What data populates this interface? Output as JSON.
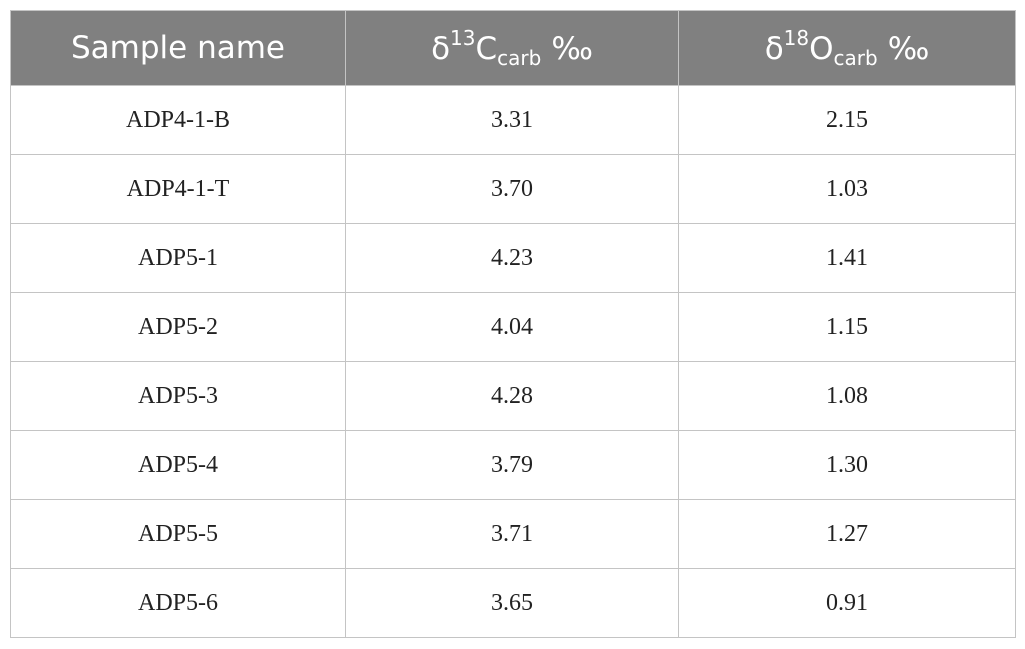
{
  "table": {
    "header": [
      {
        "text": "Sample name"
      },
      {
        "base": "δ",
        "sup": "13",
        "main": "C",
        "sub": "carb",
        "unit": "‰"
      },
      {
        "base": "δ",
        "sup": "18",
        "main": "O",
        "sub": "carb",
        "unit": "‰"
      }
    ],
    "rows": [
      [
        "ADP4-1-B",
        "3.31",
        "2.15"
      ],
      [
        "ADP4-1-T",
        "3.70",
        "1.03"
      ],
      [
        "ADP5-1",
        "4.23",
        "1.41"
      ],
      [
        "ADP5-2",
        "4.04",
        "1.15"
      ],
      [
        "ADP5-3",
        "4.28",
        "1.08"
      ],
      [
        "ADP5-4",
        "3.79",
        "1.30"
      ],
      [
        "ADP5-5",
        "3.71",
        "1.27"
      ],
      [
        "ADP5-6",
        "3.65",
        "0.91"
      ]
    ]
  }
}
